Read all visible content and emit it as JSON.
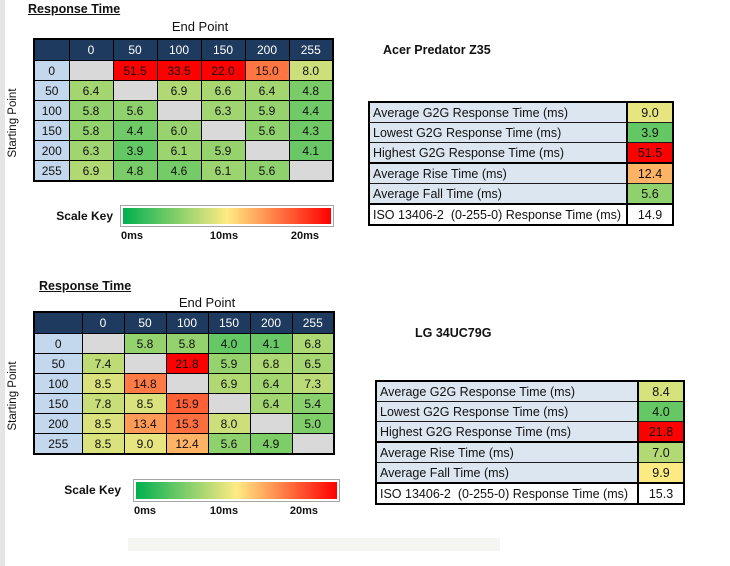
{
  "colors": {
    "header_navy": "#1f3a5f",
    "row_header_blue": "#c3d7ed",
    "diagonal_gray": "#d9d9d9",
    "stats_label_bg": "#dce6f1",
    "scale_green": "#00b050",
    "scale_yellow": "#ffeb84",
    "scale_red": "#ff0000"
  },
  "sections": [
    {
      "heading": "Response Time",
      "axis_top": "End Point",
      "axis_left": "Starting Point",
      "monitor": "Acer Predator Z35",
      "scale_key": {
        "label": "Scale Key",
        "ticks": [
          "0ms",
          "10ms",
          "20ms"
        ]
      },
      "stats": [
        {
          "label": "Average G2G Response Time (ms)",
          "value": 9.0,
          "colored": true,
          "thick_below": false
        },
        {
          "label": "Lowest G2G Response Time (ms)",
          "value": 3.9,
          "colored": true,
          "thick_below": false
        },
        {
          "label": "Highest G2G Response Time (ms)",
          "value": 51.5,
          "colored": true,
          "thick_below": true
        },
        {
          "label": "Average Rise Time (ms)",
          "value": 12.4,
          "colored": true,
          "thick_below": false
        },
        {
          "label": "Average Fall Time (ms)",
          "value": 5.6,
          "colored": true,
          "thick_below": true
        },
        {
          "label": "ISO 13406-2  (0-255-0) Response Time (ms)",
          "value": 14.9,
          "colored": false,
          "thick_below": false
        }
      ]
    },
    {
      "heading": "Response Time",
      "axis_top": "End Point",
      "axis_left": "Starting Point",
      "monitor": "LG 34UC79G",
      "scale_key": {
        "label": "Scale Key",
        "ticks": [
          "0ms",
          "10ms",
          "20ms"
        ]
      },
      "stats": [
        {
          "label": "Average G2G Response Time (ms)",
          "value": 8.4,
          "colored": true,
          "thick_below": false
        },
        {
          "label": "Lowest G2G Response Time (ms)",
          "value": 4.0,
          "colored": true,
          "thick_below": false
        },
        {
          "label": "Highest G2G Response Time (ms)",
          "value": 21.8,
          "colored": true,
          "thick_below": true
        },
        {
          "label": "Average Rise Time (ms)",
          "value": 7.0,
          "colored": true,
          "thick_below": false
        },
        {
          "label": "Average Fall Time (ms)",
          "value": 9.9,
          "colored": true,
          "thick_below": true
        },
        {
          "label": "ISO 13406-2  (0-255-0) Response Time (ms)",
          "value": 15.3,
          "colored": false,
          "thick_below": false
        }
      ]
    }
  ],
  "chart_data": [
    {
      "type": "heatmap",
      "title": "Response Time",
      "monitor": "Acer Predator Z35",
      "x_label": "End Point",
      "y_label": "Starting Point",
      "x_categories": [
        "0",
        "50",
        "100",
        "150",
        "200",
        "255"
      ],
      "y_categories": [
        "0",
        "50",
        "100",
        "150",
        "200",
        "255"
      ],
      "values_ms": [
        [
          null,
          51.5,
          33.5,
          22.0,
          15.0,
          8.0
        ],
        [
          6.4,
          null,
          6.9,
          6.6,
          6.4,
          4.8
        ],
        [
          5.8,
          5.6,
          null,
          6.3,
          5.9,
          4.4
        ],
        [
          5.8,
          4.4,
          6.0,
          null,
          5.6,
          4.3
        ],
        [
          6.3,
          3.9,
          6.1,
          5.9,
          null,
          4.1
        ],
        [
          6.9,
          4.8,
          4.6,
          6.1,
          5.6,
          null
        ]
      ],
      "color_scale": {
        "min_ms": 0,
        "mid_ms": 10,
        "max_ms": 20,
        "min_color": "#00b050",
        "mid_color": "#ffeb84",
        "max_color": "#ff0000"
      }
    },
    {
      "type": "heatmap",
      "title": "Response Time",
      "monitor": "LG 34UC79G",
      "x_label": "End Point",
      "y_label": "Starting Point",
      "x_categories": [
        "0",
        "50",
        "100",
        "150",
        "200",
        "255"
      ],
      "y_categories": [
        "0",
        "50",
        "100",
        "150",
        "200",
        "255"
      ],
      "values_ms": [
        [
          null,
          5.8,
          5.8,
          4.0,
          4.1,
          6.8
        ],
        [
          7.4,
          null,
          21.8,
          5.9,
          6.8,
          6.5
        ],
        [
          8.5,
          14.8,
          null,
          6.9,
          6.4,
          7.3
        ],
        [
          7.8,
          8.5,
          15.9,
          null,
          6.4,
          5.4
        ],
        [
          8.5,
          13.4,
          15.3,
          8.0,
          null,
          5.0
        ],
        [
          8.5,
          9.0,
          12.4,
          5.6,
          4.9,
          null
        ]
      ],
      "color_scale": {
        "min_ms": 0,
        "mid_ms": 10,
        "max_ms": 20,
        "min_color": "#00b050",
        "mid_color": "#ffeb84",
        "max_color": "#ff0000"
      }
    }
  ]
}
